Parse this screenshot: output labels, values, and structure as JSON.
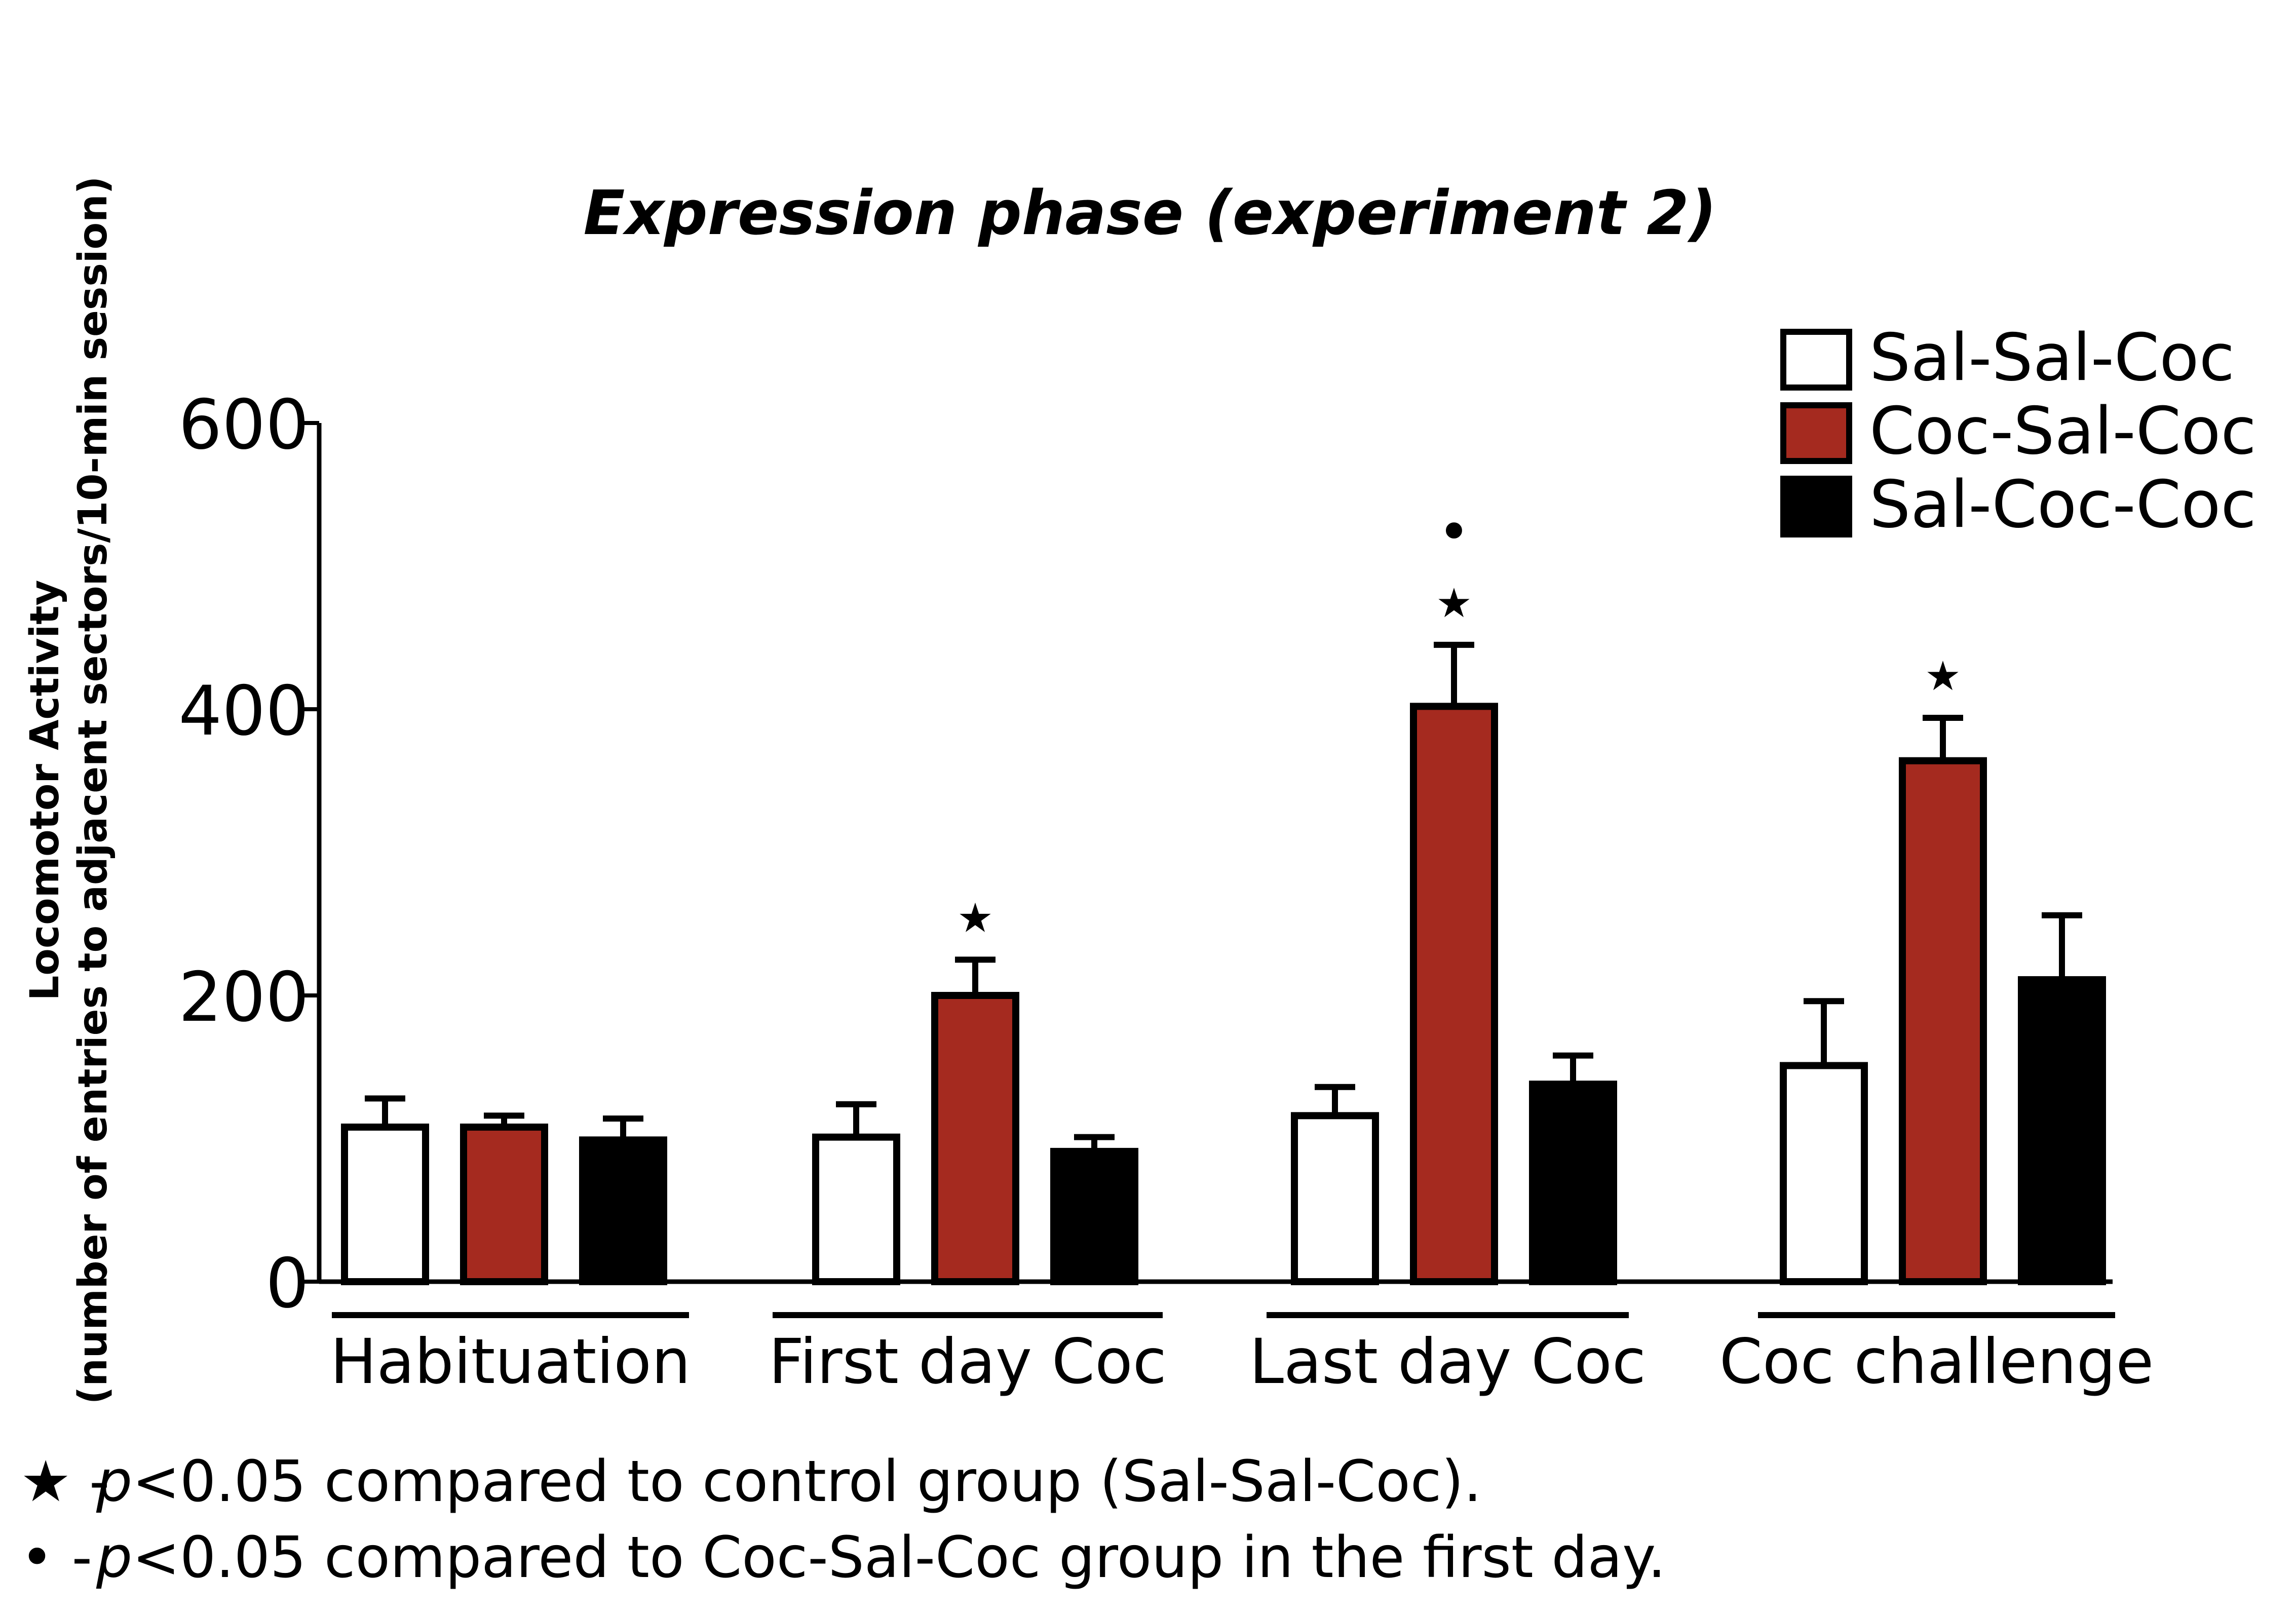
{
  "chart_data": {
    "type": "bar",
    "title": "Expression phase (experiment 2)",
    "ylabel_line1": "Locomotor Activity",
    "ylabel_line2": "(number of entries to adjacent sectors/10-min session)",
    "xlabel": "",
    "ylim": [
      0,
      600
    ],
    "yticks": [
      0,
      200,
      400,
      600
    ],
    "categories": [
      "Habituation",
      "First day Coc",
      "Last day Coc",
      "Coc challenge"
    ],
    "series": [
      {
        "name": "Sal-Sal-Coc",
        "color": "#ffffff",
        "values": [
          108,
          101,
          116,
          151
        ],
        "errors": [
          20,
          23,
          20,
          45
        ],
        "marks": [
          "",
          "",
          "",
          ""
        ]
      },
      {
        "name": "Coc-Sal-Coc",
        "color": "#a52a1f",
        "values": [
          108,
          200,
          402,
          364
        ],
        "errors": [
          8,
          25,
          43,
          30
        ],
        "marks": [
          "",
          "★",
          "★•",
          "★"
        ]
      },
      {
        "name": "Sal-Coc-Coc",
        "color": "#000000",
        "values": [
          99,
          91,
          138,
          211
        ],
        "errors": [
          15,
          10,
          20,
          45
        ],
        "marks": [
          "",
          "",
          "",
          ""
        ]
      }
    ],
    "legend_position": "top-right"
  },
  "footnotes": [
    {
      "symbol": "★ -",
      "p": "p",
      "text": "<0.05 compared to control group (Sal-Sal-Coc)."
    },
    {
      "symbol": "• -",
      "p": "p",
      "text": "<0.05 compared to Coc-Sal-Coc group in the first day."
    }
  ]
}
